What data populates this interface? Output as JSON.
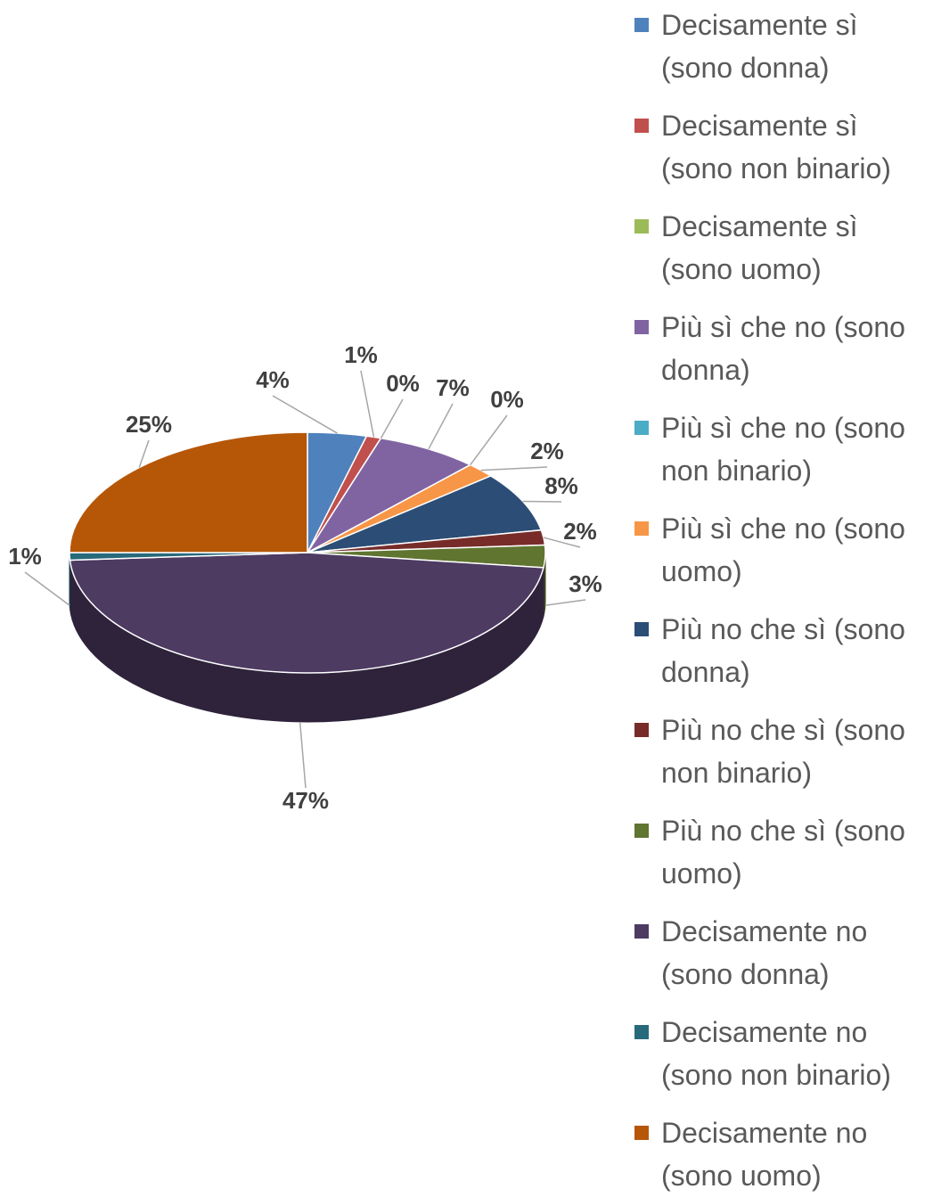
{
  "chart_data": {
    "type": "pie",
    "categories": [
      "Decisamente sì (sono donna)",
      "Decisamente sì (sono non binario)",
      "Decisamente sì (sono uomo)",
      "Più sì che no (sono donna)",
      "Più sì che no (sono non binario)",
      "Più sì che no (sono uomo)",
      "Più no che sì (sono donna)",
      "Più no che sì (sono non binario)",
      "Più no che sì (sono uomo)",
      "Decisamente no (sono donna)",
      "Decisamente no (sono non binario)",
      "Decisamente no (sono uomo)"
    ],
    "values": [
      4,
      1,
      0,
      7,
      0,
      2,
      8,
      2,
      3,
      47,
      1,
      25
    ],
    "value_labels": [
      "4%",
      "1%",
      "0%",
      "7%",
      "0%",
      "2%",
      "8%",
      "2%",
      "3%",
      "47%",
      "1%",
      "25%"
    ],
    "colors": [
      "#4f81bd",
      "#c0504d",
      "#9bbb59",
      "#8064a2",
      "#4bacc6",
      "#f79646",
      "#2c4d75",
      "#772c2a",
      "#5f7530",
      "#4d3b62",
      "#276a7c",
      "#b65708"
    ],
    "legend": "right"
  }
}
